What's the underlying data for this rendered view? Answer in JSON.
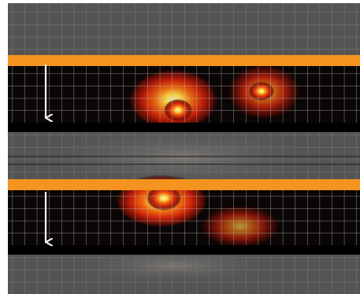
{
  "figure": {
    "colors": {
      "frame": "#ffffff",
      "background_gray": "#555453",
      "grid_line": "#bdbdbd",
      "orange_bar": "#f49320",
      "black_band": "#000000",
      "signal_dark": "#7a0f05",
      "signal_red": "#c8200a",
      "signal_orange": "#f06a10",
      "signal_yellow": "#ffe060",
      "arrow": "#ffffff"
    },
    "panels": [
      {
        "name": "top-panel",
        "arrow_icon": "down-arrow-icon",
        "hotspots": [
          {
            "name": "hotspot-left",
            "intensity": 0.95
          },
          {
            "name": "hotspot-right",
            "intensity": 0.85
          }
        ]
      },
      {
        "name": "bottom-panel",
        "arrow_icon": "down-arrow-icon",
        "hotspots": [
          {
            "name": "hotspot-left",
            "intensity": 1.0
          },
          {
            "name": "hotspot-right",
            "intensity": 0.7
          }
        ]
      }
    ]
  }
}
